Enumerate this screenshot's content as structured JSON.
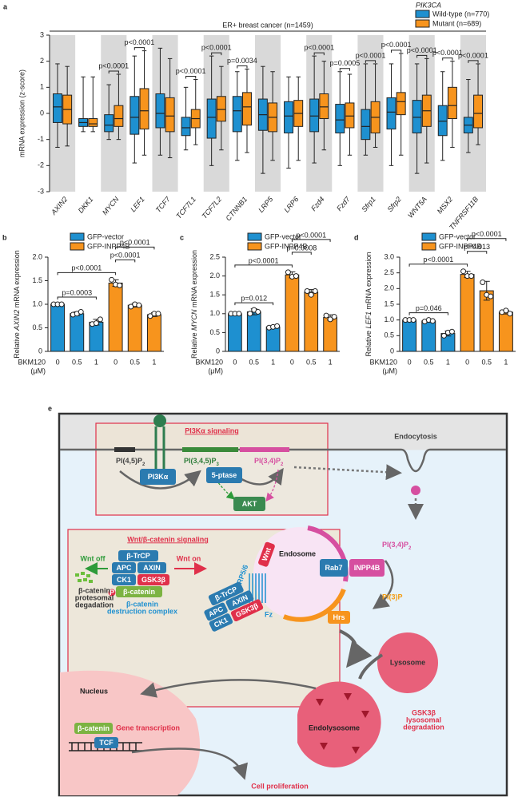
{
  "chart_data": [
    {
      "type": "box",
      "panel_label": "a",
      "title": "ER+ breast cancer (n=1459)",
      "legend_title": "PIK3CA",
      "ylabel": "mRNA expression (z-score)",
      "categories": [
        "AXIN2",
        "DKK1",
        "MYCN",
        "LEF1",
        "TCF7",
        "TCF7L1",
        "TCF7L2",
        "CTNNB1",
        "LRP5",
        "LRP6",
        "Fzd4",
        "Fzd7",
        "Sfrp1",
        "Sfrp2",
        "WNT5A",
        "MSX2",
        "TNFRSF11B"
      ],
      "series": [
        {
          "name": "Wild-type (n=770)",
          "color": "#1e90d0",
          "values": [
            [
              -1.3,
              -0.35,
              0.25,
              0.75,
              1.9
            ],
            [
              -0.7,
              -0.5,
              -0.35,
              -0.2,
              1.4
            ],
            [
              -1.0,
              -0.7,
              -0.45,
              -0.05,
              1.1
            ],
            [
              -1.9,
              -0.8,
              -0.15,
              0.65,
              2.2
            ],
            [
              -1.6,
              -0.55,
              0,
              0.75,
              2.5
            ],
            [
              -1.4,
              -0.85,
              -0.55,
              -0.15,
              1.0
            ],
            [
              -2.0,
              -0.95,
              -0.15,
              0.55,
              2.2
            ],
            [
              -1.8,
              -0.7,
              0.1,
              0.65,
              1.6
            ],
            [
              -2.3,
              -0.65,
              -0.05,
              0.55,
              1.8
            ],
            [
              -2.1,
              -0.75,
              -0.1,
              0.45,
              1.4
            ],
            [
              -1.9,
              -0.7,
              -0.1,
              0.55,
              2.2
            ],
            [
              -2.0,
              -0.75,
              -0.25,
              0.35,
              1.6
            ],
            [
              -1.6,
              -1.0,
              -0.5,
              0.15,
              1.9
            ],
            [
              -2.0,
              -0.6,
              0.05,
              0.6,
              1.9
            ],
            [
              -2.3,
              -0.75,
              -0.15,
              0.5,
              1.9
            ],
            [
              -1.8,
              -0.85,
              -0.3,
              0.3,
              1.6
            ],
            [
              -1.5,
              -0.75,
              -0.45,
              -0.15,
              1.3
            ]
          ]
        },
        {
          "name": "Mutant (n=689)",
          "color": "#f7941d",
          "values": [
            [
              -1.25,
              -0.4,
              0.15,
              0.7,
              1.8
            ],
            [
              -0.7,
              -0.5,
              -0.4,
              -0.2,
              1.4
            ],
            [
              -1.0,
              -0.5,
              -0.2,
              0.3,
              1.5
            ],
            [
              -1.6,
              -0.6,
              0.1,
              0.95,
              2.4
            ],
            [
              -1.7,
              -0.7,
              -0.1,
              0.6,
              2.1
            ],
            [
              -1.2,
              -0.55,
              -0.2,
              0.15,
              1.3
            ],
            [
              -1.4,
              -0.3,
              0.15,
              0.65,
              1.8
            ],
            [
              -1.5,
              -0.45,
              0.25,
              0.8,
              1.7
            ],
            [
              -1.8,
              -0.7,
              -0.15,
              0.4,
              1.6
            ],
            [
              -1.8,
              -0.5,
              0,
              0.5,
              1.4
            ],
            [
              -1.4,
              -0.2,
              0.25,
              0.75,
              2.0
            ],
            [
              -1.6,
              -0.55,
              -0.1,
              0.4,
              1.5
            ],
            [
              -1.3,
              -0.75,
              -0.15,
              0.45,
              1.9
            ],
            [
              -1.6,
              -0.05,
              0.45,
              0.8,
              2.3
            ],
            [
              -1.9,
              -0.5,
              0.1,
              0.7,
              2.1
            ],
            [
              -1.3,
              -0.2,
              0.3,
              1.0,
              2.0
            ],
            [
              -1.2,
              -0.55,
              0,
              0.7,
              1.9
            ]
          ]
        }
      ],
      "significance": [
        null,
        null,
        "p<0.0001",
        "p<0.0001",
        null,
        "p<0.0001",
        "p<0.0001",
        "p=0.0034",
        null,
        null,
        "p<0.0001",
        "p=0.0005",
        "p<0.0001",
        "p<0.0001",
        "p<0.0001",
        "p<0.0001",
        "p<0.0001"
      ],
      "ylim": [
        -3,
        3
      ],
      "yticks": [
        -3,
        -2,
        -1,
        0,
        1,
        2,
        3
      ],
      "shaded_bands": true
    },
    {
      "type": "bar",
      "panel_label": "b",
      "ylabel": [
        "Relative ",
        "AXIN2",
        " mRNA expression"
      ],
      "xlabel": [
        "BKM120",
        "(μM)"
      ],
      "categories": [
        "0",
        "0.5",
        "1",
        "0",
        "0.5",
        "1"
      ],
      "series": [
        {
          "name": "GFP-vector",
          "color": "#1e90d0",
          "values": [
            1.0,
            0.8,
            0.62,
            null,
            null,
            null
          ],
          "errors": [
            0.02,
            0.04,
            0.06,
            null,
            null,
            null
          ],
          "points": [
            [
              1.0,
              1.0,
              1.0
            ],
            [
              0.78,
              0.8,
              0.84
            ],
            [
              0.58,
              0.6,
              0.68
            ],
            null,
            null,
            null
          ]
        },
        {
          "name": "GFP-INPP4B",
          "color": "#f7941d",
          "values": [
            null,
            null,
            null,
            1.45,
            0.98,
            0.78
          ],
          "errors": [
            null,
            null,
            null,
            0.07,
            0.04,
            0.04
          ],
          "points": [
            null,
            null,
            null,
            [
              1.52,
              1.42,
              1.4
            ],
            [
              0.95,
              1.0,
              0.98
            ],
            [
              0.75,
              0.8,
              0.8
            ]
          ]
        }
      ],
      "comparisons": [
        {
          "bars": [
            0,
            2
          ],
          "label": "p=0.0003"
        },
        {
          "bars": [
            0,
            3
          ],
          "label": "p<0.0001"
        },
        {
          "bars": [
            3,
            4
          ],
          "label": "p<0.0001"
        },
        {
          "bars": [
            3,
            5
          ],
          "label": "p<0.0001"
        }
      ],
      "ylim": [
        0,
        2
      ],
      "yticks": [
        0,
        0.5,
        {
          "value": 1,
          "label": "1.0"
        },
        1.5,
        {
          "value": 2,
          "label": "2.0"
        }
      ]
    },
    {
      "type": "bar",
      "panel_label": "c",
      "ylabel": [
        "Relative ",
        "MYCN",
        " mRNA expression"
      ],
      "xlabel": [
        "BKM120",
        "(μM)"
      ],
      "categories": [
        "0",
        "0.5",
        "1",
        "0",
        "0.5",
        "1"
      ],
      "series": [
        {
          "name": "GFP-vector",
          "color": "#1e90d0",
          "values": [
            1.0,
            1.05,
            0.65,
            null,
            null,
            null
          ],
          "errors": [
            0.02,
            0.08,
            0.03,
            null,
            null,
            null
          ],
          "points": [
            [
              1.0,
              1.0,
              1.0
            ],
            [
              1.0,
              1.1,
              1.05
            ],
            [
              0.63,
              0.65,
              0.67
            ],
            null,
            null,
            null
          ]
        },
        {
          "name": "GFP-INPP4B",
          "color": "#f7941d",
          "values": [
            null,
            null,
            null,
            2.03,
            1.57,
            0.9
          ],
          "errors": [
            null,
            null,
            null,
            0.08,
            0.07,
            0.07
          ],
          "points": [
            null,
            null,
            null,
            [
              2.1,
              1.98,
              2.0
            ],
            [
              1.6,
              1.5,
              1.6
            ],
            [
              0.95,
              0.85,
              0.92
            ]
          ]
        }
      ],
      "comparisons": [
        {
          "bars": [
            0,
            2
          ],
          "label": "p=0.012"
        },
        {
          "bars": [
            0,
            3
          ],
          "label": "p<0.0001"
        },
        {
          "bars": [
            3,
            4
          ],
          "label": "p=0.0008"
        },
        {
          "bars": [
            3,
            5
          ],
          "label": "p<0.0001"
        }
      ],
      "ylim": [
        0,
        2.5
      ],
      "yticks": [
        0,
        0.5,
        {
          "value": 1,
          "label": "1.0"
        },
        1.5,
        {
          "value": 2,
          "label": "2.0"
        },
        2.5
      ]
    },
    {
      "type": "bar",
      "panel_label": "d",
      "ylabel": [
        "Relative ",
        "LEF1",
        " mRNA expression"
      ],
      "xlabel": [
        "BKM120",
        "(μM)"
      ],
      "categories": [
        "0",
        "0.5",
        "1",
        "0",
        "0.5",
        "1"
      ],
      "series": [
        {
          "name": "GFP-vector",
          "color": "#1e90d0",
          "values": [
            1.0,
            0.97,
            0.57,
            null,
            null,
            null
          ],
          "errors": [
            0.02,
            0.04,
            0.08,
            null,
            null,
            null
          ],
          "points": [
            [
              1.0,
              1.0,
              1.0
            ],
            [
              0.95,
              1.0,
              0.97
            ],
            [
              0.5,
              0.6,
              0.63
            ],
            null,
            null,
            null
          ]
        },
        {
          "name": "GFP-INPP4B",
          "color": "#f7941d",
          "values": [
            null,
            null,
            null,
            2.45,
            1.93,
            1.25
          ],
          "errors": [
            null,
            null,
            null,
            0.1,
            0.3,
            0.06
          ],
          "points": [
            null,
            null,
            null,
            [
              2.55,
              2.4,
              2.4
            ],
            [
              2.2,
              1.8,
              1.75
            ],
            [
              1.25,
              1.3,
              1.2
            ]
          ]
        }
      ],
      "comparisons": [
        {
          "bars": [
            0,
            2
          ],
          "label": "p=0.046"
        },
        {
          "bars": [
            0,
            3
          ],
          "label": "p<0.0001"
        },
        {
          "bars": [
            3,
            4
          ],
          "label": "p=0.013"
        },
        {
          "bars": [
            3,
            5
          ],
          "label": "p<0.0001"
        }
      ],
      "ylim": [
        0,
        3
      ],
      "yticks": [
        0,
        0.5,
        {
          "value": 1,
          "label": "1.0"
        },
        1.5,
        {
          "value": 2,
          "label": "2.0"
        },
        2.5,
        {
          "value": 3,
          "label": "3.0"
        }
      ]
    }
  ],
  "diagram": {
    "panel_label": "e",
    "pi3k_title": "PI3Kα signaling",
    "pip2": [
      "PI(4,5)P",
      "2"
    ],
    "pi3k": "PI3Kα",
    "pip3": [
      "PI(3,4,5)P",
      "3"
    ],
    "ptase": "5-ptase",
    "pi34p2": [
      "PI(3,4)P",
      "2"
    ],
    "akt": "AKT",
    "endocytosis": "Endocytosis",
    "endosome": "Endosome",
    "endosome_pi34p2": [
      "PI(3,4)P",
      "2"
    ],
    "rab7": "Rab7",
    "inpp4b": "INPP4B",
    "pi3p": "PI(3)P",
    "hrs": "Hrs",
    "wnt_title": "Wnt/β-catenin signaling",
    "wnt_off": "Wnt off",
    "wnt_on": "Wnt on",
    "complex": [
      "β-TrCP",
      "APC",
      "AXIN",
      "CK1",
      "GSK3β",
      "β-catenin"
    ],
    "phospho": "P",
    "complex_caption": [
      "β-catenin",
      "destruction complex"
    ],
    "degradation": [
      "β-catenin",
      "protesomal",
      "degadation"
    ],
    "receptor": "LRP5/6",
    "wnt": "Wnt",
    "fz": "Fz",
    "bound_complex": [
      "β-TrCP",
      "APC",
      "AXIN",
      "CK1",
      "GSK3β"
    ],
    "lysosome": "Lysosome",
    "nucleus": "Nucleus",
    "nuclear_bcat": "β-catenin",
    "transcription": "Gene transcription",
    "tcf": "TCF",
    "endolysosome": "Endolysosome",
    "gsk_degradation": [
      "GSK3β",
      "lysosomal",
      "degradation"
    ],
    "proliferation": "Cell proliferation"
  }
}
